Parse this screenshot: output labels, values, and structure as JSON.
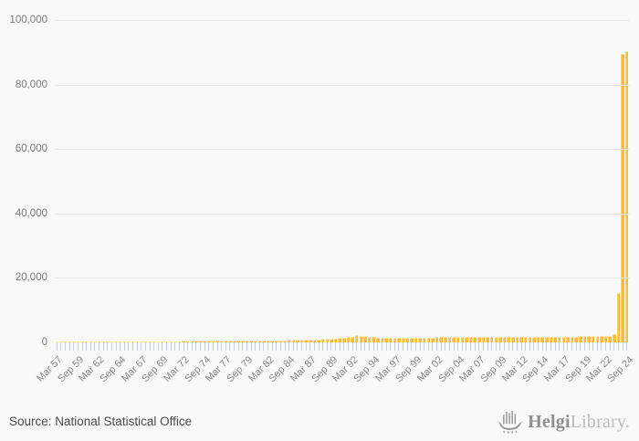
{
  "chart_data": {
    "type": "bar",
    "title": "",
    "frequency": "semiannual",
    "x_first": "Mar 57",
    "x_last": "Sep 24",
    "tick_every": 5,
    "x_tick_labels": [
      "Mar 57",
      "Sep 59",
      "Mar 62",
      "Sep 64",
      "Mar 67",
      "Sep 69",
      "Mar 72",
      "Sep 74",
      "Mar 77",
      "Sep 79",
      "Mar 82",
      "Sep 84",
      "Mar 87",
      "Sep 89",
      "Mar 92",
      "Sep 94",
      "Mar 97",
      "Sep 99",
      "Mar 02",
      "Sep 04",
      "Mar 07",
      "Sep 09",
      "Mar 12",
      "Sep 14",
      "Mar 17",
      "Sep 19",
      "Mar 22",
      "Sep 24"
    ],
    "y_tick_labels": [
      "100,000",
      "80,000",
      "60,000",
      "40,000",
      "20,000",
      "0"
    ],
    "ylim": [
      0,
      100000
    ],
    "grid": true,
    "legend_position": "none",
    "bar_color": "#fbbc35",
    "values": [
      250,
      256,
      262,
      268,
      274,
      280,
      286,
      292,
      298,
      304,
      310,
      316,
      322,
      328,
      334,
      340,
      346,
      352,
      358,
      364,
      370,
      376,
      382,
      388,
      394,
      400,
      406,
      412,
      418,
      424,
      430,
      436,
      442,
      448,
      454,
      460,
      466,
      472,
      478,
      484,
      490,
      500,
      510,
      520,
      530,
      540,
      550,
      565,
      580,
      595,
      610,
      630,
      650,
      670,
      690,
      715,
      740,
      770,
      800,
      840,
      880,
      930,
      980,
      1040,
      1100,
      1170,
      1250,
      1340,
      1450,
      1600,
      1800,
      2200,
      2100,
      1850,
      1680,
      1560,
      1500,
      1480,
      1470,
      1470,
      1480,
      1490,
      1500,
      1510,
      1520,
      1530,
      1540,
      1545,
      1550,
      1555,
      1560,
      1565,
      1570,
      1575,
      1580,
      1585,
      1590,
      1595,
      1600,
      1605,
      1610,
      1615,
      1625,
      1635,
      1645,
      1655,
      1665,
      1675,
      1685,
      1695,
      1705,
      1715,
      1725,
      1735,
      1745,
      1755,
      1765,
      1775,
      1785,
      1795,
      1805,
      1815,
      1825,
      1835,
      1845,
      1855,
      1865,
      1875,
      1890,
      1905,
      1930,
      1970,
      2500,
      15300,
      89600,
      90300
    ]
  },
  "colors": {
    "background": "#f9f9f9",
    "bar": "#fbbc35",
    "gridline": "#e9e9e9",
    "tick_mark": "#c3cce0",
    "axis_label": "#8a8a8a"
  },
  "footer": {
    "source": "Source: National Statistical Office",
    "logo_primary": "Helgi",
    "logo_secondary": "Library."
  }
}
